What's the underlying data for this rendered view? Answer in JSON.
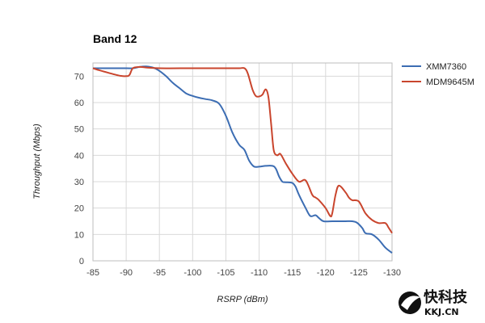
{
  "chart_data": {
    "type": "line",
    "title": "Band 12",
    "xlabel": "RSRP (dBm)",
    "ylabel": "Throughput (Mbps)",
    "xlim": [
      -85,
      -130
    ],
    "ylim": [
      0,
      75
    ],
    "x_ticks": [
      -85,
      -90,
      -95,
      -100,
      -105,
      -110,
      -115,
      -120,
      -125,
      -130
    ],
    "y_ticks": [
      0,
      10,
      20,
      30,
      40,
      50,
      60,
      70
    ],
    "grid": true,
    "legend_position": "right",
    "series": [
      {
        "name": "XMM7360",
        "color": "#3c6db3",
        "points": [
          [
            -85,
            73
          ],
          [
            -90,
            73
          ],
          [
            -91,
            73
          ],
          [
            -92,
            73.5
          ],
          [
            -93,
            73.7
          ],
          [
            -94,
            73.3
          ],
          [
            -95,
            72
          ],
          [
            -96,
            70
          ],
          [
            -97,
            67.5
          ],
          [
            -98,
            65.5
          ],
          [
            -99,
            63.5
          ],
          [
            -100,
            62.5
          ],
          [
            -101,
            61.8
          ],
          [
            -102,
            61.3
          ],
          [
            -103,
            60.8
          ],
          [
            -104,
            59.5
          ],
          [
            -105,
            55
          ],
          [
            -106,
            48.5
          ],
          [
            -107,
            44
          ],
          [
            -107.8,
            42
          ],
          [
            -108.5,
            38
          ],
          [
            -109.2,
            35.8
          ],
          [
            -110,
            35.7
          ],
          [
            -111,
            36
          ],
          [
            -112,
            36
          ],
          [
            -112.5,
            35
          ],
          [
            -113,
            32
          ],
          [
            -113.5,
            30
          ],
          [
            -114,
            29.8
          ],
          [
            -115,
            29.5
          ],
          [
            -115.5,
            28
          ],
          [
            -116,
            25
          ],
          [
            -117,
            20
          ],
          [
            -117.7,
            17
          ],
          [
            -118.5,
            17.3
          ],
          [
            -119,
            16.2
          ],
          [
            -119.7,
            15
          ],
          [
            -121,
            15
          ],
          [
            -122,
            15
          ],
          [
            -123,
            15
          ],
          [
            -124,
            15
          ],
          [
            -124.7,
            14.5
          ],
          [
            -125.5,
            12.5
          ],
          [
            -126,
            10.5
          ],
          [
            -127,
            10
          ],
          [
            -128,
            8
          ],
          [
            -129,
            5
          ],
          [
            -130,
            3
          ]
        ]
      },
      {
        "name": "MDM9645M",
        "color": "#c9452d",
        "points": [
          [
            -85,
            73
          ],
          [
            -86,
            72.2
          ],
          [
            -87,
            71.5
          ],
          [
            -88,
            70.8
          ],
          [
            -89,
            70.2
          ],
          [
            -90,
            70
          ],
          [
            -90.5,
            70.5
          ],
          [
            -91,
            73
          ],
          [
            -92,
            73.5
          ],
          [
            -93,
            73.3
          ],
          [
            -95,
            73
          ],
          [
            -100,
            73
          ],
          [
            -105,
            73
          ],
          [
            -107,
            73
          ],
          [
            -107.8,
            73
          ],
          [
            -108.3,
            71
          ],
          [
            -109,
            65
          ],
          [
            -109.5,
            62.5
          ],
          [
            -110,
            62.3
          ],
          [
            -110.5,
            63
          ],
          [
            -111,
            65
          ],
          [
            -111.4,
            62
          ],
          [
            -111.8,
            52
          ],
          [
            -112.2,
            42
          ],
          [
            -112.7,
            40
          ],
          [
            -113.2,
            40.5
          ],
          [
            -114,
            37
          ],
          [
            -115,
            33
          ],
          [
            -116,
            30
          ],
          [
            -117,
            30.5
          ],
          [
            -118,
            25
          ],
          [
            -118.5,
            24
          ],
          [
            -119,
            23
          ],
          [
            -120,
            20
          ],
          [
            -120.7,
            17
          ],
          [
            -121,
            18
          ],
          [
            -121.5,
            25
          ],
          [
            -122,
            28.5
          ],
          [
            -123,
            26
          ],
          [
            -123.5,
            24
          ],
          [
            -124,
            23
          ],
          [
            -125,
            22.5
          ],
          [
            -126,
            18
          ],
          [
            -127,
            15.5
          ],
          [
            -128,
            14.3
          ],
          [
            -129,
            14.3
          ],
          [
            -129.5,
            12.5
          ],
          [
            -130,
            10.5
          ]
        ]
      }
    ]
  },
  "watermark": {
    "chinese": "快科技",
    "latin": "KKJ.CN"
  }
}
